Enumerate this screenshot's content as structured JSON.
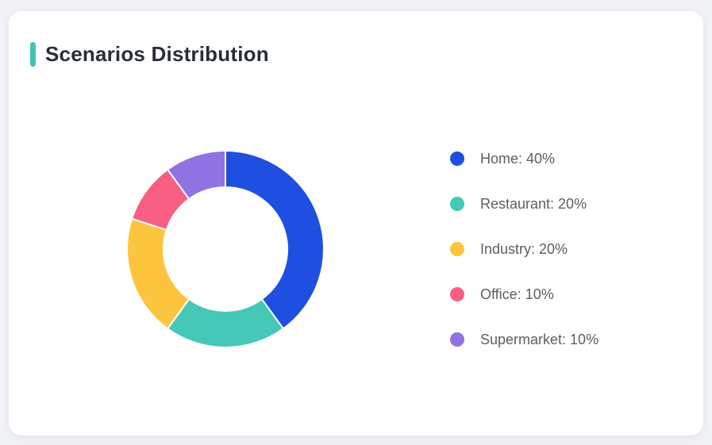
{
  "page": {
    "background_color": "#f0f2f5"
  },
  "card": {
    "title": "Scenarios Distribution",
    "accent_color": "#3ec4b8"
  },
  "chart_data": {
    "type": "pie",
    "variant": "donut",
    "title": "Scenarios Distribution",
    "start_angle_deg": -90,
    "direction": "clockwise",
    "inner_radius_ratio": 0.63,
    "legend_position": "right",
    "unit": "%",
    "separator": ": ",
    "series": [
      {
        "label": "Home",
        "value": 40,
        "color": "#1e4fe0"
      },
      {
        "label": "Restaurant",
        "value": 20,
        "color": "#45c8b8"
      },
      {
        "label": "Industry",
        "value": 20,
        "color": "#fdc53d"
      },
      {
        "label": "Office",
        "value": 10,
        "color": "#f95f83"
      },
      {
        "label": "Supermarket",
        "value": 10,
        "color": "#9172e3"
      }
    ]
  }
}
